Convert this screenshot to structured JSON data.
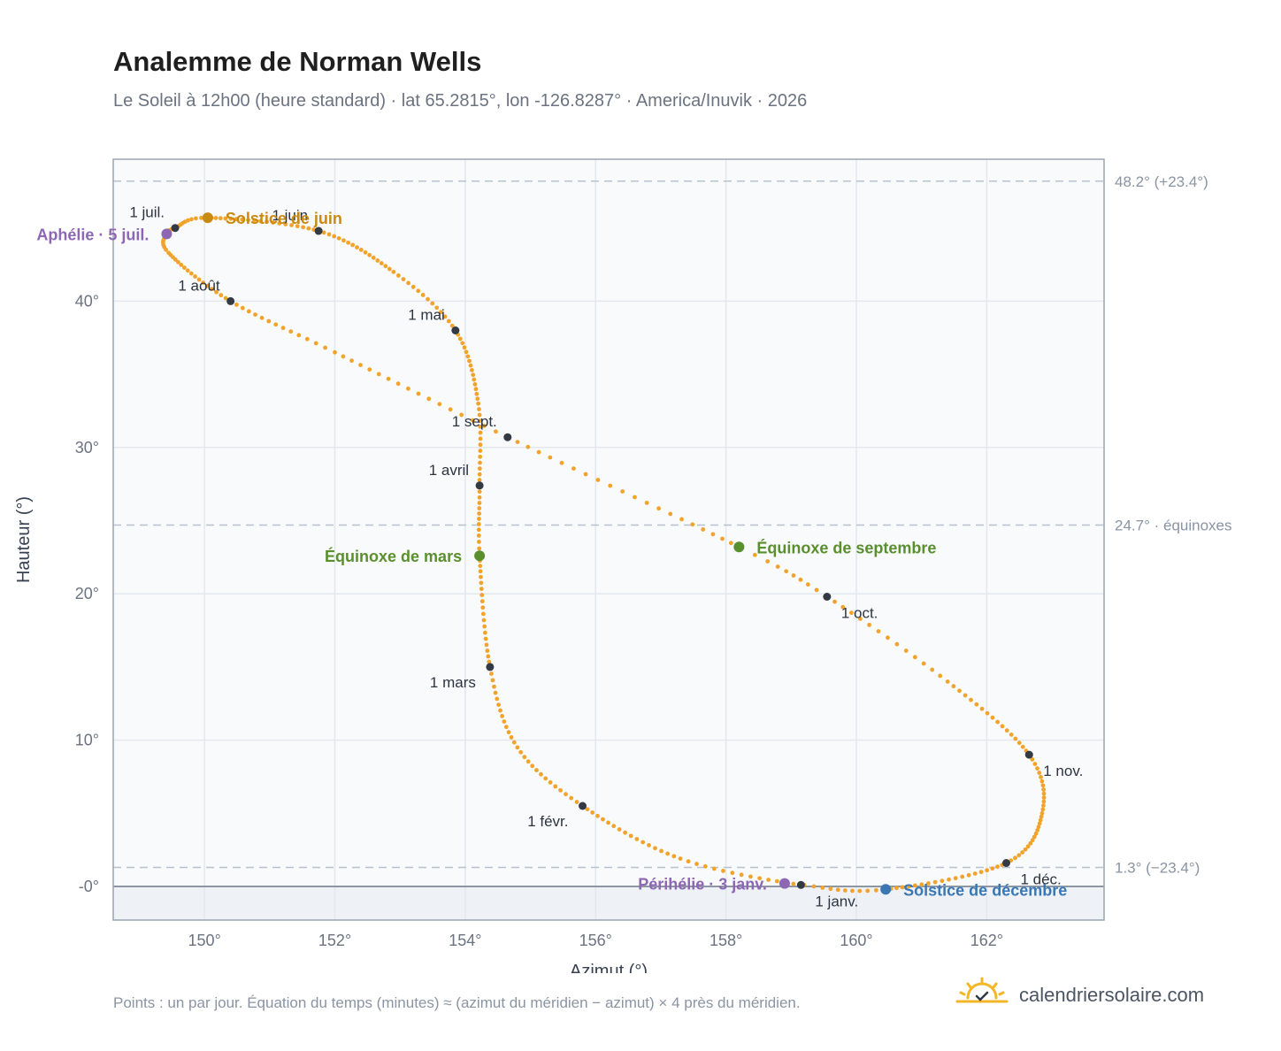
{
  "title": "Analemme de Norman Wells",
  "subtitle": "Le Soleil à 12h00 (heure standard) · lat 65.2815°, lon -126.8287° · America/Inuvik · 2026",
  "footnote": "Points : un par jour. Équation du temps (minutes) ≈ (azimut du méridien − azimut) × 4 près du méridien.",
  "brand": {
    "name": "calendriersolaire.com"
  },
  "colors": {
    "analemma": "#f2a32b",
    "month_marker": "#343a44",
    "summer_solstice": "#c98a12",
    "winter_solstice": "#3a78b5",
    "equinox": "#5a8f2e",
    "apsis": "#8e67b4",
    "plot_background": "#f8fafc",
    "below_horizon": "#eef2f6"
  },
  "chart_data": {
    "type": "scatter",
    "title": "Analemme de Norman Wells",
    "xlabel": "Azimut (°)",
    "ylabel": "Hauteur (°)",
    "xlim": [
      148.6,
      163.8
    ],
    "ylim": [
      -2.3,
      49.7
    ],
    "xticks": [
      {
        "value": 150,
        "label": "150°"
      },
      {
        "value": 152,
        "label": "152°"
      },
      {
        "value": 154,
        "label": "154°"
      },
      {
        "value": 156,
        "label": "156°"
      },
      {
        "value": 158,
        "label": "158°"
      },
      {
        "value": 160,
        "label": "160°"
      },
      {
        "value": 162,
        "label": "162°"
      }
    ],
    "yticks": [
      {
        "value": 0,
        "label": "-0°"
      },
      {
        "value": 10,
        "label": "10°"
      },
      {
        "value": 20,
        "label": "20°"
      },
      {
        "value": 30,
        "label": "30°"
      },
      {
        "value": 40,
        "label": "40°"
      }
    ],
    "grid": true,
    "horizon": 0,
    "reference_lines": [
      {
        "y": 48.2,
        "label": "48.2° (+23.4°)"
      },
      {
        "y": 24.7,
        "label": "24.7° · équinoxes"
      },
      {
        "y": 1.3,
        "label": "1.3° (−23.4°)"
      }
    ],
    "series": [
      {
        "name": "",
        "note": "one point per day",
        "anchors": [
          {
            "date": "2026-01-01",
            "x": 159.15,
            "y": 0.1
          },
          {
            "date": "2026-01-15",
            "x": 157.3,
            "y": 1.9
          },
          {
            "date": "2026-02-01",
            "x": 155.8,
            "y": 5.5
          },
          {
            "date": "2026-02-15",
            "x": 154.8,
            "y": 9.5
          },
          {
            "date": "2026-03-01",
            "x": 154.38,
            "y": 15.0
          },
          {
            "date": "2026-03-20",
            "x": 154.22,
            "y": 22.6
          },
          {
            "date": "2026-04-01",
            "x": 154.22,
            "y": 27.4
          },
          {
            "date": "2026-04-15",
            "x": 154.2,
            "y": 33.0
          },
          {
            "date": "2026-05-01",
            "x": 153.85,
            "y": 38.0
          },
          {
            "date": "2026-05-15",
            "x": 152.9,
            "y": 42.0
          },
          {
            "date": "2026-06-01",
            "x": 151.75,
            "y": 44.8
          },
          {
            "date": "2026-06-21",
            "x": 150.05,
            "y": 45.7
          },
          {
            "date": "2026-07-01",
            "x": 149.55,
            "y": 45.0
          },
          {
            "date": "2026-07-05",
            "x": 149.42,
            "y": 44.6
          },
          {
            "date": "2026-07-15",
            "x": 149.45,
            "y": 43.3
          },
          {
            "date": "2026-08-01",
            "x": 150.4,
            "y": 40.0
          },
          {
            "date": "2026-08-15",
            "x": 152.0,
            "y": 36.5
          },
          {
            "date": "2026-09-01",
            "x": 154.65,
            "y": 30.7
          },
          {
            "date": "2026-09-22",
            "x": 158.2,
            "y": 23.2
          },
          {
            "date": "2026-10-01",
            "x": 159.55,
            "y": 19.8
          },
          {
            "date": "2026-10-15",
            "x": 161.4,
            "y": 14.0
          },
          {
            "date": "2026-11-01",
            "x": 162.65,
            "y": 9.0
          },
          {
            "date": "2026-11-15",
            "x": 162.85,
            "y": 5.0
          },
          {
            "date": "2026-12-01",
            "x": 162.3,
            "y": 1.6
          },
          {
            "date": "2026-12-21",
            "x": 160.45,
            "y": -0.2
          },
          {
            "date": "2026-12-31",
            "x": 159.2,
            "y": 0.1
          }
        ]
      }
    ],
    "month_markers": [
      {
        "label": "1 janv.",
        "x": 159.15,
        "y": 0.1,
        "label_pos": "below-right"
      },
      {
        "label": "1 févr.",
        "x": 155.8,
        "y": 5.5,
        "label_pos": "below-left"
      },
      {
        "label": "1 mars",
        "x": 154.38,
        "y": 15.0,
        "label_pos": "below-left"
      },
      {
        "label": "1 avril",
        "x": 154.22,
        "y": 27.4,
        "label_pos": "above-left"
      },
      {
        "label": "1 mai",
        "x": 153.85,
        "y": 38.0,
        "label_pos": "above-left"
      },
      {
        "label": "1 juin",
        "x": 151.75,
        "y": 44.8,
        "label_pos": "above-left"
      },
      {
        "label": "1 juil.",
        "x": 149.55,
        "y": 45.0,
        "label_pos": "above-left"
      },
      {
        "label": "1 août",
        "x": 150.4,
        "y": 40.0,
        "label_pos": "above-left"
      },
      {
        "label": "1 sept.",
        "x": 154.65,
        "y": 30.7,
        "label_pos": "above-left"
      },
      {
        "label": "1 oct.",
        "x": 159.55,
        "y": 19.8,
        "label_pos": "below-right"
      },
      {
        "label": "1 nov.",
        "x": 162.65,
        "y": 9.0,
        "label_pos": "below-right"
      },
      {
        "label": "1 déc.",
        "x": 162.3,
        "y": 1.6,
        "label_pos": "below-right"
      }
    ],
    "events": [
      {
        "label": "Solstice de juin",
        "x": 150.05,
        "y": 45.7,
        "color": "#c98a12",
        "label_pos": "right"
      },
      {
        "label": "Équinoxe de mars",
        "x": 154.22,
        "y": 22.6,
        "color": "#5a8f2e",
        "label_pos": "left"
      },
      {
        "label": "Équinoxe de septembre",
        "x": 158.2,
        "y": 23.2,
        "color": "#5a8f2e",
        "label_pos": "right"
      },
      {
        "label": "Solstice de décembre",
        "x": 160.45,
        "y": -0.2,
        "color": "#3a78b5",
        "label_pos": "right"
      },
      {
        "label": "Aphélie · 5 juil.",
        "x": 149.42,
        "y": 44.6,
        "color": "#8e67b4",
        "label_pos": "left"
      },
      {
        "label": "Périhélie · 3 janv.",
        "x": 158.9,
        "y": 0.2,
        "color": "#8e67b4",
        "label_pos": "left"
      }
    ]
  }
}
